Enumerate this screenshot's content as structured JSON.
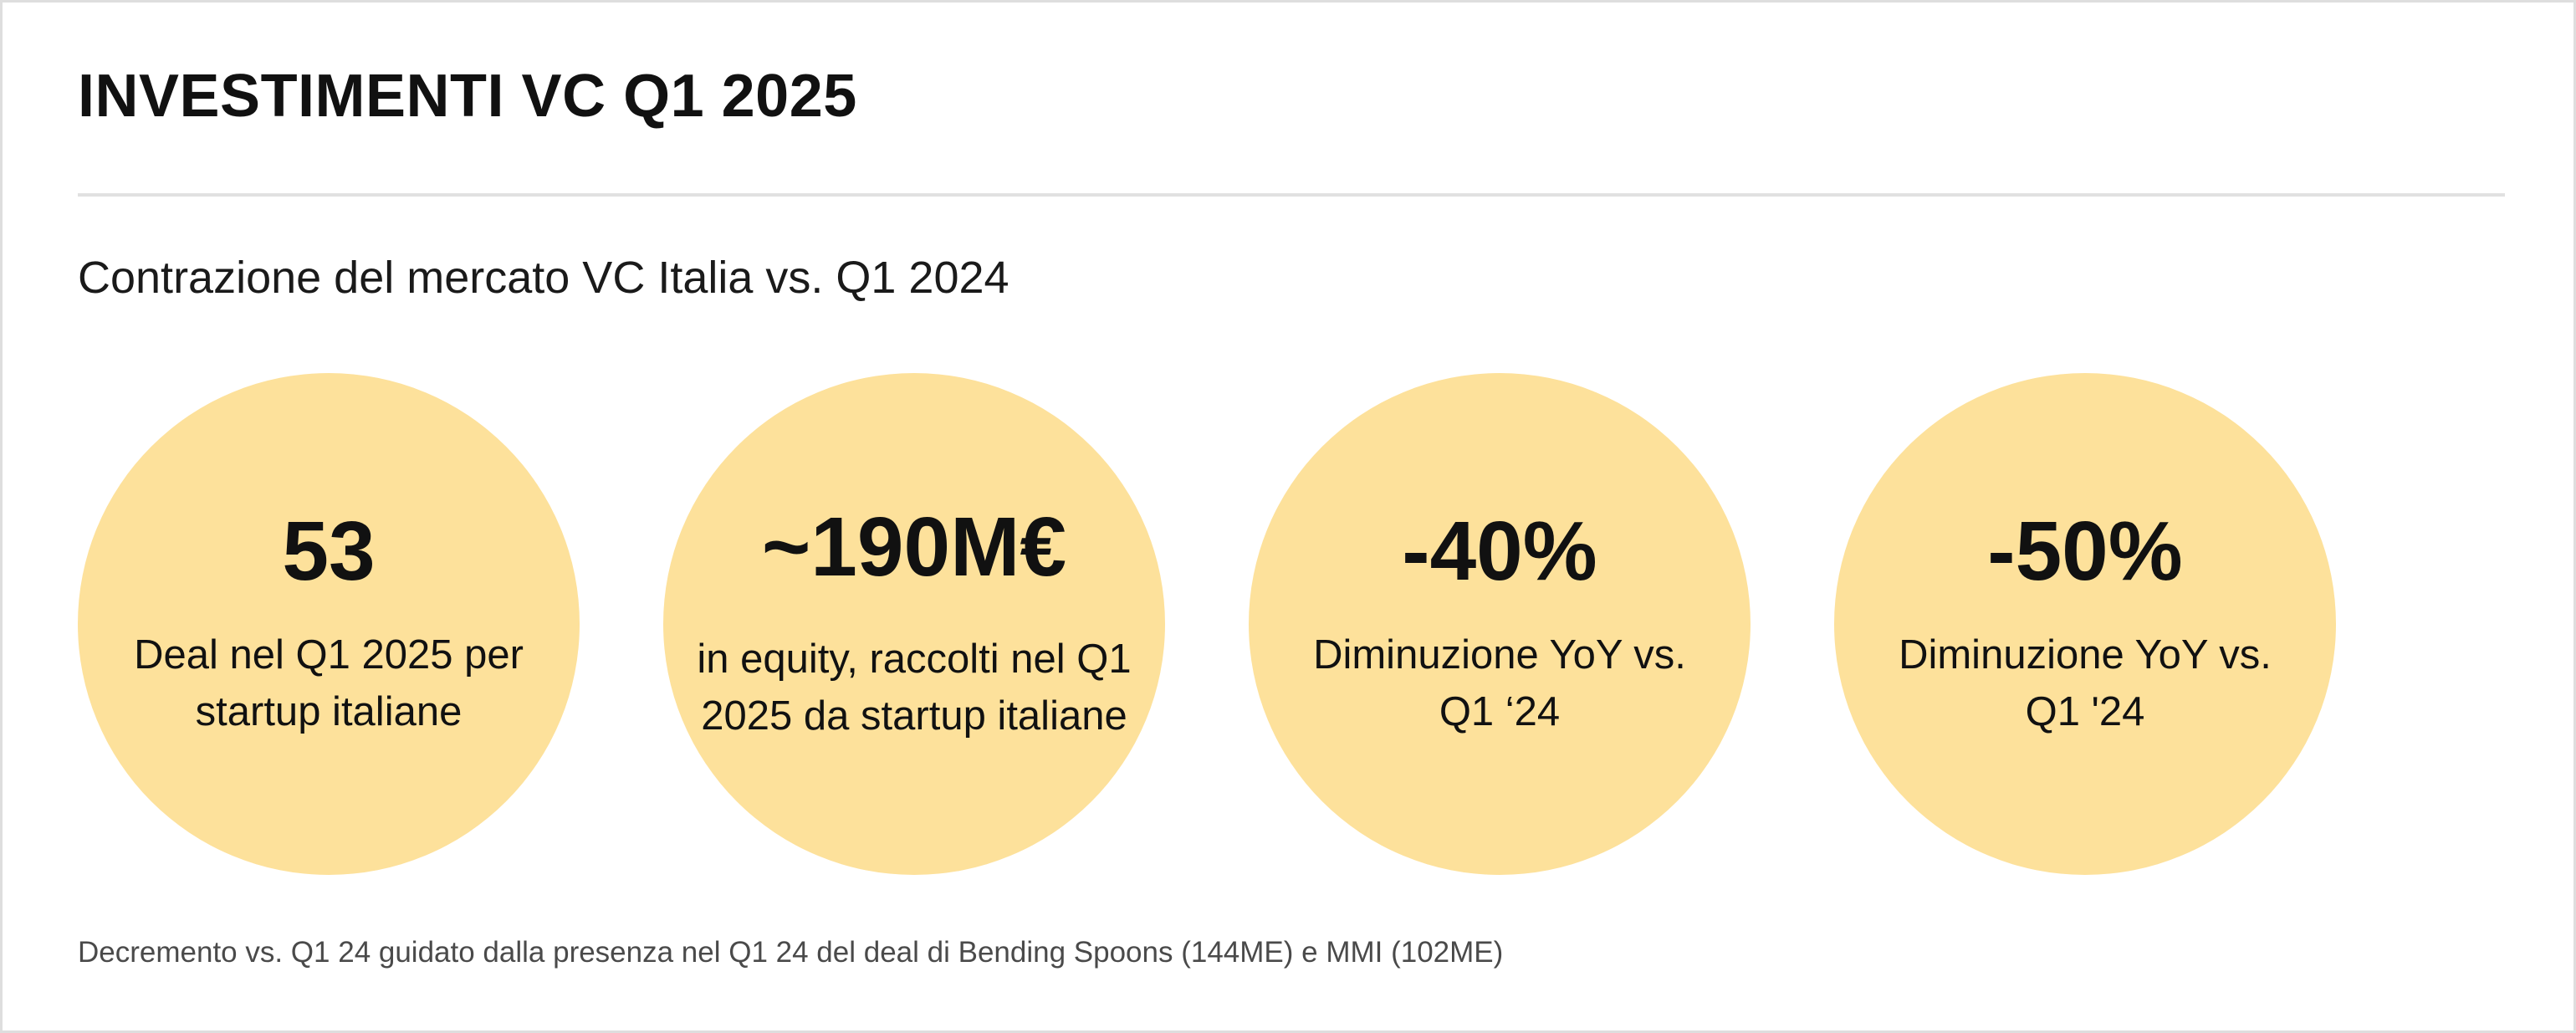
{
  "title": "INVESTIMENTI VC Q1 2025",
  "subtitle": "Contrazione del mercato VC Italia vs. Q1 2024",
  "accent_color": "#fde19b",
  "kpis": [
    {
      "value": "53",
      "description": "Deal nel Q1 2025 per startup italiane"
    },
    {
      "value": "~190M€",
      "description": "in equity, raccolti nel Q1 2025 da startup italiane"
    },
    {
      "value": "-40%",
      "description": "Diminuzione YoY vs. Q1 ‘24"
    },
    {
      "value": "-50%",
      "description": "Diminuzione YoY vs. Q1 '24"
    }
  ],
  "footnote": "Decremento vs. Q1 24 guidato dalla presenza nel Q1 24 del deal di Bending Spoons (144ME) e MMI (102ME)"
}
